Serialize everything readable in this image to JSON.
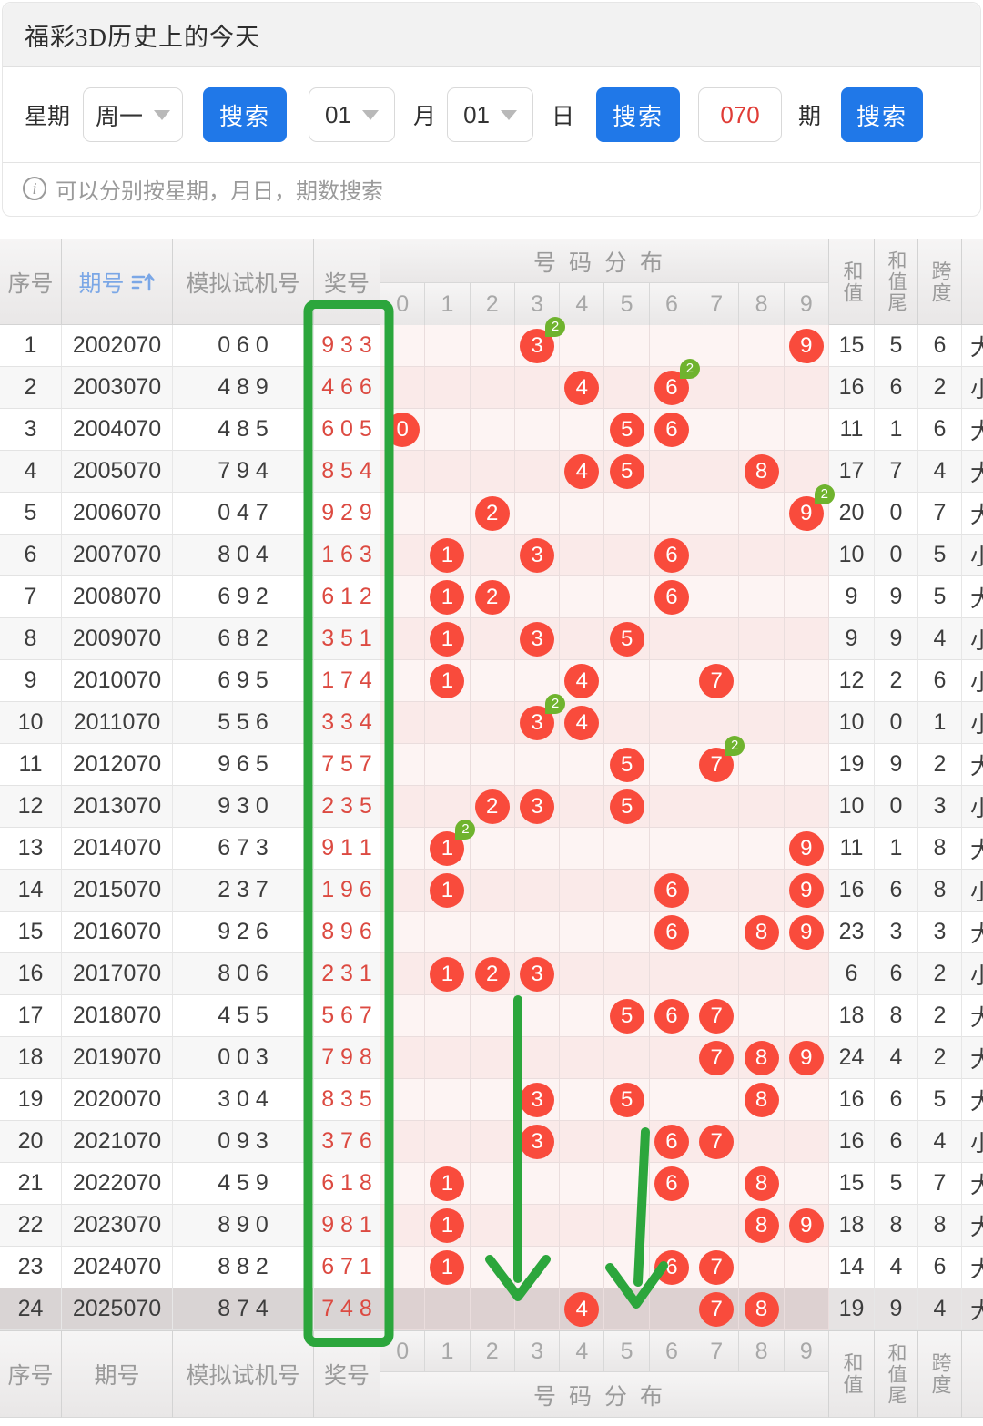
{
  "colors": {
    "button_blue": "#2078e8",
    "ball_red": "#f94b3c",
    "badge_green": "#6fb32e",
    "anno_green": "#2ca63c",
    "prize_red": "#dc4a41",
    "input_red": "#e03c36",
    "issue_blue": "#7ba7e6"
  },
  "header": {
    "title": "福彩3D历史上的今天"
  },
  "search": {
    "week_label": "星期",
    "week_value": "周一",
    "search_label": "搜索",
    "month_value": "01",
    "month_label": "月",
    "day_value": "01",
    "day_label": "日",
    "issue_value": "070",
    "issue_label": "期",
    "hint_icon": "i",
    "hint": "可以分别按星期，月日，期数搜索"
  },
  "table": {
    "headers": {
      "seq": "序号",
      "issue": "期号",
      "test": "模拟试机号",
      "prize": "奖号",
      "dist": "号码分布",
      "sum": "和值",
      "sum_tail": "和值尾",
      "span": "跨度"
    },
    "digits": [
      "0",
      "1",
      "2",
      "3",
      "4",
      "5",
      "6",
      "7",
      "8",
      "9"
    ],
    "rows": [
      {
        "seq": "1",
        "issue": "2002070",
        "test": "0 6 0",
        "prize": "9 3 3",
        "balls": [
          {
            "d": 3,
            "n": "3",
            "badge": "2"
          },
          {
            "d": 9,
            "n": "9"
          }
        ],
        "sum": "15",
        "tail": "5",
        "span": "6",
        "size": "大"
      },
      {
        "seq": "2",
        "issue": "2003070",
        "test": "4 8 9",
        "prize": "4 6 6",
        "balls": [
          {
            "d": 4,
            "n": "4"
          },
          {
            "d": 6,
            "n": "6",
            "badge": "2"
          }
        ],
        "sum": "16",
        "tail": "6",
        "span": "2",
        "size": "小"
      },
      {
        "seq": "3",
        "issue": "2004070",
        "test": "4 8 5",
        "prize": "6 0 5",
        "balls": [
          {
            "d": 0,
            "n": "0"
          },
          {
            "d": 5,
            "n": "5"
          },
          {
            "d": 6,
            "n": "6"
          }
        ],
        "sum": "11",
        "tail": "1",
        "span": "6",
        "size": "大"
      },
      {
        "seq": "4",
        "issue": "2005070",
        "test": "7 9 4",
        "prize": "8 5 4",
        "balls": [
          {
            "d": 4,
            "n": "4"
          },
          {
            "d": 5,
            "n": "5"
          },
          {
            "d": 8,
            "n": "8"
          }
        ],
        "sum": "17",
        "tail": "7",
        "span": "4",
        "size": "大"
      },
      {
        "seq": "5",
        "issue": "2006070",
        "test": "0 4 7",
        "prize": "9 2 9",
        "balls": [
          {
            "d": 2,
            "n": "2"
          },
          {
            "d": 9,
            "n": "9",
            "badge": "2"
          }
        ],
        "sum": "20",
        "tail": "0",
        "span": "7",
        "size": "大"
      },
      {
        "seq": "6",
        "issue": "2007070",
        "test": "8 0 4",
        "prize": "1 6 3",
        "balls": [
          {
            "d": 1,
            "n": "1"
          },
          {
            "d": 3,
            "n": "3"
          },
          {
            "d": 6,
            "n": "6"
          }
        ],
        "sum": "10",
        "tail": "0",
        "span": "5",
        "size": "小"
      },
      {
        "seq": "7",
        "issue": "2008070",
        "test": "6 9 2",
        "prize": "6 1 2",
        "balls": [
          {
            "d": 1,
            "n": "1"
          },
          {
            "d": 2,
            "n": "2"
          },
          {
            "d": 6,
            "n": "6"
          }
        ],
        "sum": "9",
        "tail": "9",
        "span": "5",
        "size": "大"
      },
      {
        "seq": "8",
        "issue": "2009070",
        "test": "6 8 2",
        "prize": "3 5 1",
        "balls": [
          {
            "d": 1,
            "n": "1"
          },
          {
            "d": 3,
            "n": "3"
          },
          {
            "d": 5,
            "n": "5"
          }
        ],
        "sum": "9",
        "tail": "9",
        "span": "4",
        "size": "小"
      },
      {
        "seq": "9",
        "issue": "2010070",
        "test": "6 9 5",
        "prize": "1 7 4",
        "balls": [
          {
            "d": 1,
            "n": "1"
          },
          {
            "d": 4,
            "n": "4"
          },
          {
            "d": 7,
            "n": "7"
          }
        ],
        "sum": "12",
        "tail": "2",
        "span": "6",
        "size": "小"
      },
      {
        "seq": "10",
        "issue": "2011070",
        "test": "5 5 6",
        "prize": "3 3 4",
        "balls": [
          {
            "d": 3,
            "n": "3",
            "badge": "2"
          },
          {
            "d": 4,
            "n": "4"
          }
        ],
        "sum": "10",
        "tail": "0",
        "span": "1",
        "size": "小"
      },
      {
        "seq": "11",
        "issue": "2012070",
        "test": "9 6 5",
        "prize": "7 5 7",
        "balls": [
          {
            "d": 5,
            "n": "5"
          },
          {
            "d": 7,
            "n": "7",
            "badge": "2"
          }
        ],
        "sum": "19",
        "tail": "9",
        "span": "2",
        "size": "大"
      },
      {
        "seq": "12",
        "issue": "2013070",
        "test": "9 3 0",
        "prize": "2 3 5",
        "balls": [
          {
            "d": 2,
            "n": "2"
          },
          {
            "d": 3,
            "n": "3"
          },
          {
            "d": 5,
            "n": "5"
          }
        ],
        "sum": "10",
        "tail": "0",
        "span": "3",
        "size": "小"
      },
      {
        "seq": "13",
        "issue": "2014070",
        "test": "6 7 3",
        "prize": "9 1 1",
        "balls": [
          {
            "d": 1,
            "n": "1",
            "badge": "2"
          },
          {
            "d": 9,
            "n": "9"
          }
        ],
        "sum": "11",
        "tail": "1",
        "span": "8",
        "size": "大"
      },
      {
        "seq": "14",
        "issue": "2015070",
        "test": "2 3 7",
        "prize": "1 9 6",
        "balls": [
          {
            "d": 1,
            "n": "1"
          },
          {
            "d": 6,
            "n": "6"
          },
          {
            "d": 9,
            "n": "9"
          }
        ],
        "sum": "16",
        "tail": "6",
        "span": "8",
        "size": "小"
      },
      {
        "seq": "15",
        "issue": "2016070",
        "test": "9 2 6",
        "prize": "8 9 6",
        "balls": [
          {
            "d": 6,
            "n": "6"
          },
          {
            "d": 8,
            "n": "8"
          },
          {
            "d": 9,
            "n": "9"
          }
        ],
        "sum": "23",
        "tail": "3",
        "span": "3",
        "size": "大"
      },
      {
        "seq": "16",
        "issue": "2017070",
        "test": "8 0 6",
        "prize": "2 3 1",
        "balls": [
          {
            "d": 1,
            "n": "1"
          },
          {
            "d": 2,
            "n": "2"
          },
          {
            "d": 3,
            "n": "3"
          }
        ],
        "sum": "6",
        "tail": "6",
        "span": "2",
        "size": "小"
      },
      {
        "seq": "17",
        "issue": "2018070",
        "test": "4 5 5",
        "prize": "5 6 7",
        "balls": [
          {
            "d": 5,
            "n": "5"
          },
          {
            "d": 6,
            "n": "6"
          },
          {
            "d": 7,
            "n": "7"
          }
        ],
        "sum": "18",
        "tail": "8",
        "span": "2",
        "size": "大"
      },
      {
        "seq": "18",
        "issue": "2019070",
        "test": "0 0 3",
        "prize": "7 9 8",
        "balls": [
          {
            "d": 7,
            "n": "7"
          },
          {
            "d": 8,
            "n": "8"
          },
          {
            "d": 9,
            "n": "9"
          }
        ],
        "sum": "24",
        "tail": "4",
        "span": "2",
        "size": "大"
      },
      {
        "seq": "19",
        "issue": "2020070",
        "test": "3 0 4",
        "prize": "8 3 5",
        "balls": [
          {
            "d": 3,
            "n": "3"
          },
          {
            "d": 5,
            "n": "5"
          },
          {
            "d": 8,
            "n": "8"
          }
        ],
        "sum": "16",
        "tail": "6",
        "span": "5",
        "size": "大"
      },
      {
        "seq": "20",
        "issue": "2021070",
        "test": "0 9 3",
        "prize": "3 7 6",
        "balls": [
          {
            "d": 3,
            "n": "3"
          },
          {
            "d": 6,
            "n": "6"
          },
          {
            "d": 7,
            "n": "7"
          }
        ],
        "sum": "16",
        "tail": "6",
        "span": "4",
        "size": "小"
      },
      {
        "seq": "21",
        "issue": "2022070",
        "test": "4 5 9",
        "prize": "6 1 8",
        "balls": [
          {
            "d": 1,
            "n": "1"
          },
          {
            "d": 6,
            "n": "6"
          },
          {
            "d": 8,
            "n": "8"
          }
        ],
        "sum": "15",
        "tail": "5",
        "span": "7",
        "size": "大"
      },
      {
        "seq": "22",
        "issue": "2023070",
        "test": "8 9 0",
        "prize": "9 8 1",
        "balls": [
          {
            "d": 1,
            "n": "1"
          },
          {
            "d": 8,
            "n": "8"
          },
          {
            "d": 9,
            "n": "9"
          }
        ],
        "sum": "18",
        "tail": "8",
        "span": "8",
        "size": "大"
      },
      {
        "seq": "23",
        "issue": "2024070",
        "test": "8 8 2",
        "prize": "6 7 1",
        "balls": [
          {
            "d": 1,
            "n": "1"
          },
          {
            "d": 6,
            "n": "6"
          },
          {
            "d": 7,
            "n": "7"
          }
        ],
        "sum": "14",
        "tail": "4",
        "span": "6",
        "size": "大"
      },
      {
        "seq": "24",
        "issue": "2025070",
        "test": "8 7 4",
        "prize": "7 4 8",
        "balls": [
          {
            "d": 4,
            "n": "4"
          },
          {
            "d": 7,
            "n": "7"
          },
          {
            "d": 8,
            "n": "8"
          }
        ],
        "sum": "19",
        "tail": "9",
        "span": "4",
        "size": "大",
        "highlight": true
      }
    ]
  },
  "annotations": {
    "highlighted_column": "奖号",
    "badge_meaning": "2"
  }
}
